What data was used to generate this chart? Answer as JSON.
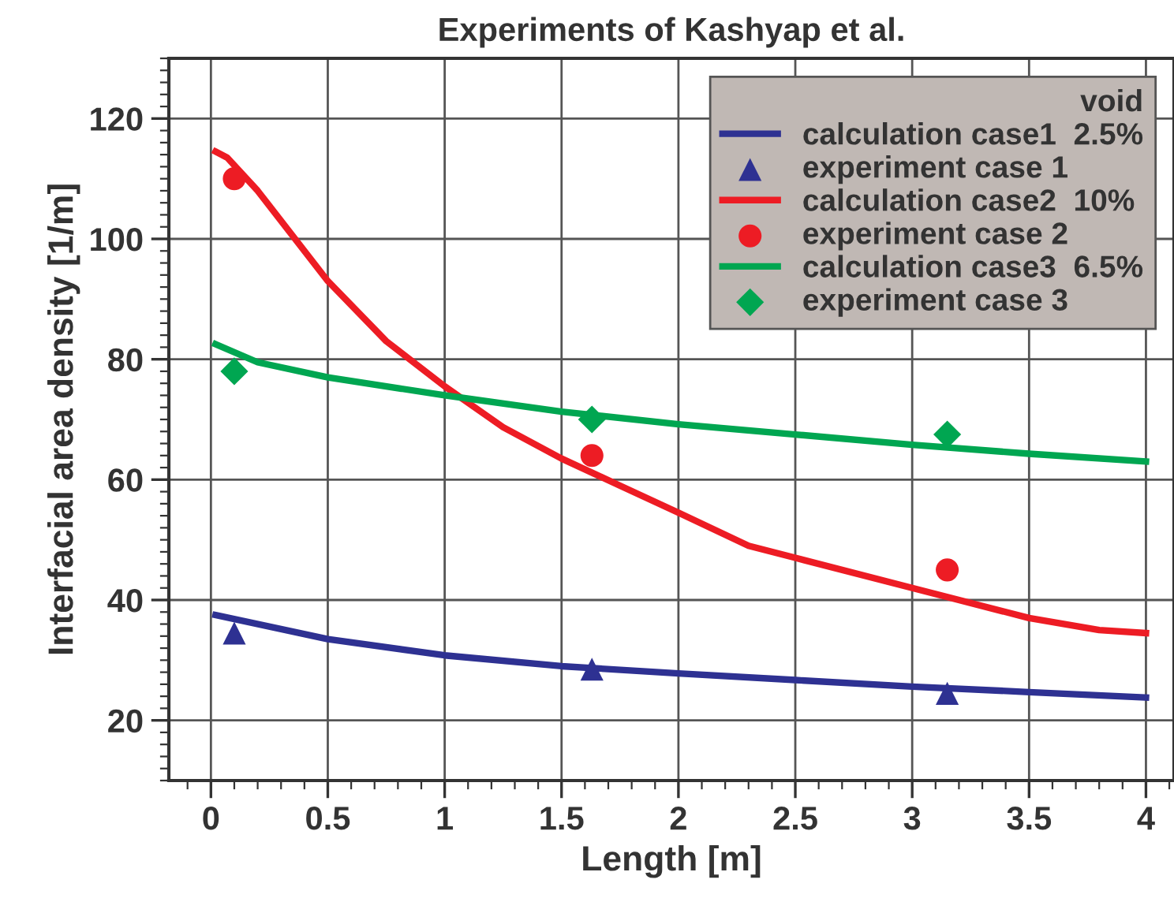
{
  "chart_data": {
    "type": "line",
    "title": "Experiments of Kashyap et al.",
    "xlabel": "Length [m]",
    "ylabel": "Interfacial area density [1/m]",
    "legend_title": "void",
    "xlim": [
      -0.18,
      4.12
    ],
    "ylim": [
      10,
      130
    ],
    "xticks": [
      {
        "value": 0,
        "label": "0"
      },
      0.5,
      {
        "value": 1,
        "label": "1"
      },
      1.5,
      {
        "value": 2,
        "label": "2"
      },
      2.5,
      {
        "value": 3,
        "label": "3"
      },
      3.5,
      {
        "value": 4,
        "label": "4"
      }
    ],
    "yticks": [
      20,
      40,
      60,
      80,
      100,
      120
    ],
    "grid": true,
    "legend": "top right",
    "series": [
      {
        "name": "calculation case1  2.5%",
        "color": "#2e3192",
        "marker": "none",
        "x": [
          0.02,
          0.5,
          1,
          1.5,
          2,
          2.5,
          3,
          3.5,
          4
        ],
        "values": [
          37.5,
          33.5,
          30.8,
          29,
          27.8,
          26.7,
          25.6,
          24.7,
          23.8
        ]
      },
      {
        "name": "experiment case 1",
        "type": "scatter",
        "color": "#2e3192",
        "marker": "triangle",
        "x": [
          0.1,
          1.63,
          3.15
        ],
        "values": [
          34.5,
          28.5,
          24.5
        ]
      },
      {
        "name": "calculation case2  10%",
        "color": "#ed1c24",
        "marker": "none",
        "x": [
          0.02,
          0.07,
          0.2,
          0.5,
          0.75,
          1,
          1.25,
          1.5,
          1.75,
          2,
          2.3,
          2.5,
          3,
          3.5,
          3.8,
          4
        ],
        "values": [
          114.5,
          113.5,
          108,
          93,
          83,
          75.5,
          68.7,
          63.5,
          59,
          54.5,
          49,
          47,
          42,
          37,
          35,
          34.5
        ]
      },
      {
        "name": "experiment case 2",
        "type": "scatter",
        "color": "#ed1c24",
        "marker": "circle",
        "x": [
          0.1,
          1.63,
          3.15
        ],
        "values": [
          110,
          64,
          45
        ]
      },
      {
        "name": "calculation case3  6.5%",
        "color": "#00a651",
        "marker": "none",
        "x": [
          0.02,
          0.2,
          0.5,
          1,
          1.5,
          2,
          2.5,
          3,
          3.5,
          4
        ],
        "values": [
          82.5,
          79.5,
          77,
          74,
          71.3,
          69.2,
          67.5,
          65.8,
          64.3,
          63
        ]
      },
      {
        "name": "experiment case 3",
        "type": "scatter",
        "color": "#00a651",
        "marker": "diamond",
        "x": [
          0.1,
          1.63,
          3.15
        ],
        "values": [
          78,
          70,
          67.5
        ]
      }
    ]
  }
}
